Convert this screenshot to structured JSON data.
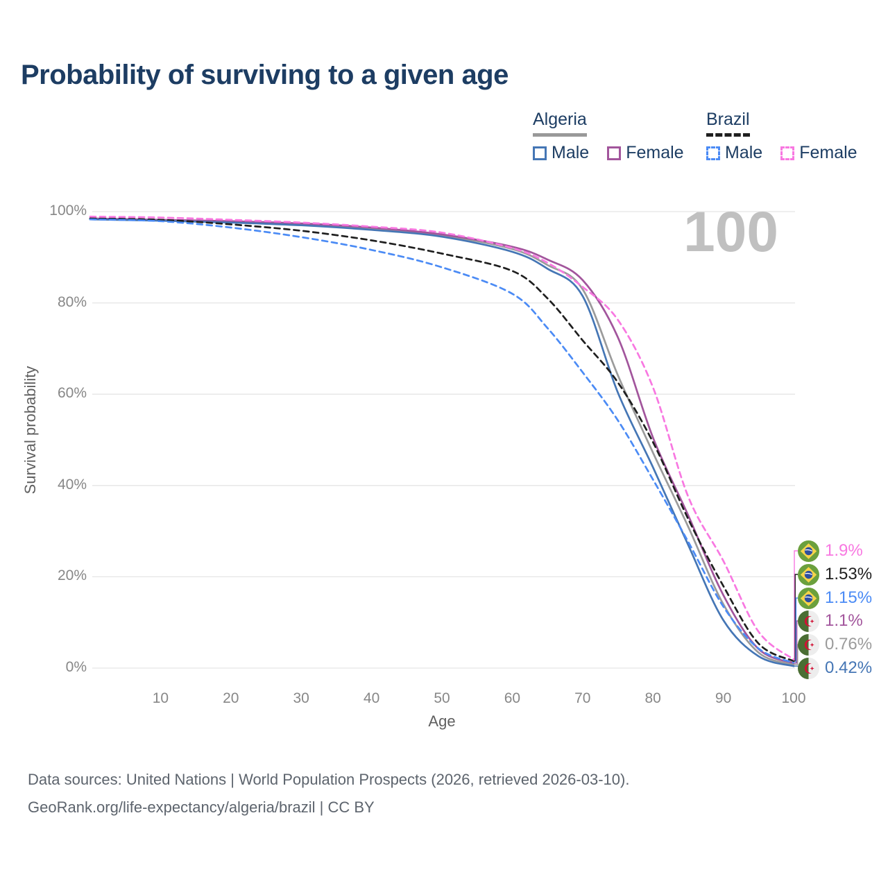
{
  "title": "Probability of surviving to a given age",
  "watermark": "100",
  "legend": {
    "groups": [
      {
        "name": "Algeria",
        "underline_color": "#999999",
        "underline_style": "solid",
        "items": [
          {
            "label": "Male",
            "color": "#4576b5",
            "dashed": false
          },
          {
            "label": "Female",
            "color": "#a2559c",
            "dashed": false
          }
        ]
      },
      {
        "name": "Brazil",
        "underline_color": "#1f1f1f",
        "underline_style": "dashed",
        "items": [
          {
            "label": "Male",
            "color": "#4b8bf5",
            "dashed": true
          },
          {
            "label": "Female",
            "color": "#f878e1",
            "dashed": true
          }
        ]
      }
    ]
  },
  "chart_data": {
    "type": "line",
    "title": "Probability of surviving to a given age",
    "xlabel": "Age",
    "ylabel": "Survival probability",
    "xlim": [
      0,
      100
    ],
    "ylim": [
      0,
      100
    ],
    "grid": "horizontal",
    "x_ticks": [
      10,
      20,
      30,
      40,
      50,
      60,
      70,
      80,
      90,
      100
    ],
    "y_tick_labels": [
      "0%",
      "20%",
      "40%",
      "60%",
      "80%",
      "100%"
    ],
    "y_tick_values": [
      0,
      20,
      40,
      60,
      80,
      100
    ],
    "x": [
      0,
      10,
      20,
      30,
      40,
      50,
      60,
      65,
      70,
      75,
      80,
      85,
      90,
      95,
      100
    ],
    "series": [
      {
        "name": "Algeria",
        "country": "Algeria",
        "sex": "Both sexes",
        "color": "#9b9b9b",
        "dashed": false,
        "values": [
          98.4,
          98.1,
          97.7,
          97.1,
          96.2,
          94.8,
          91.8,
          88.3,
          83.0,
          64.2,
          47.2,
          31.0,
          14.0,
          3.4,
          0.76
        ]
      },
      {
        "name": "Algeria Female",
        "country": "Algeria",
        "sex": "Female",
        "color": "#a2559c",
        "dashed": false,
        "values": [
          98.5,
          98.2,
          97.9,
          97.4,
          96.5,
          95.0,
          92.3,
          89.5,
          85.0,
          72.5,
          50.5,
          33.5,
          16.0,
          4.2,
          1.1
        ]
      },
      {
        "name": "Algeria Male",
        "country": "Algeria",
        "sex": "Male",
        "color": "#4576b5",
        "dashed": false,
        "values": [
          98.3,
          98.0,
          97.6,
          97.0,
          96.0,
          94.5,
          91.2,
          87.5,
          81.5,
          60.4,
          44.0,
          27.0,
          10.5,
          2.6,
          0.42
        ]
      },
      {
        "name": "Brazil",
        "country": "Brazil",
        "sex": "Both sexes",
        "color": "#1f1f1f",
        "dashed": true,
        "values": [
          98.5,
          98.2,
          97.2,
          95.8,
          93.7,
          90.8,
          87.0,
          81.0,
          71.8,
          62.6,
          49.5,
          32.7,
          18.0,
          5.4,
          1.53
        ]
      },
      {
        "name": "Brazil Male",
        "country": "Brazil",
        "sex": "Male",
        "color": "#4b8bf5",
        "dashed": true,
        "values": [
          98.3,
          97.9,
          96.5,
          94.4,
          91.6,
          87.8,
          82.0,
          74.5,
          64.8,
          54.3,
          41.3,
          27.7,
          13.5,
          4.3,
          1.15
        ]
      },
      {
        "name": "Brazil Female",
        "country": "Brazil",
        "sex": "Female",
        "color": "#f878e1",
        "dashed": true,
        "values": [
          98.9,
          98.7,
          98.2,
          97.6,
          96.7,
          95.4,
          92.0,
          88.8,
          83.5,
          76.3,
          61.5,
          37.6,
          23.5,
          8.0,
          1.9
        ]
      }
    ],
    "end_labels": [
      {
        "series": "Brazil Female",
        "flag": "brazil",
        "value": "1.9%",
        "color": "#f878e1"
      },
      {
        "series": "Brazil",
        "flag": "brazil",
        "value": "1.53%",
        "color": "#1f1f1f"
      },
      {
        "series": "Brazil Male",
        "flag": "brazil",
        "value": "1.15%",
        "color": "#4b8bf5"
      },
      {
        "series": "Algeria Female",
        "flag": "algeria",
        "value": "1.1%",
        "color": "#a2559c"
      },
      {
        "series": "Algeria",
        "flag": "algeria",
        "value": "0.76%",
        "color": "#9b9b9b"
      },
      {
        "series": "Algeria Male",
        "flag": "algeria",
        "value": "0.42%",
        "color": "#4576b5"
      }
    ],
    "legend_position": "top-right"
  },
  "footer": {
    "line1": "Data sources: United Nations | World Population Prospects (2026, retrieved 2026-03-10).",
    "line2": "GeoRank.org/life-expectancy/algeria/brazil | CC BY"
  }
}
